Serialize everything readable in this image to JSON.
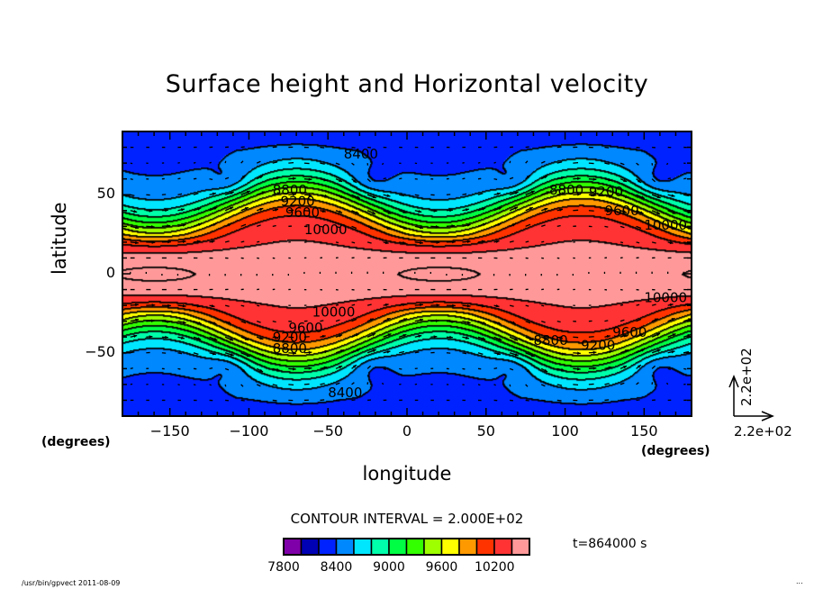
{
  "chart_data": {
    "type": "heatmap",
    "title": "Surface height and Horizontal velocity",
    "xlabel": "longitude",
    "ylabel": "latitude",
    "x_units": "(degrees)",
    "y_units": "(degrees)",
    "xlim": [
      -180,
      180
    ],
    "ylim": [
      -90,
      90
    ],
    "xticks": [
      -150,
      -100,
      -50,
      0,
      50,
      100,
      150
    ],
    "yticks": [
      -50,
      0,
      50
    ],
    "field": "surface height",
    "vector_field": "horizontal velocity",
    "contour_interval_text": "CONTOUR INTERVAL = 2.000E+02",
    "contour_interval": 200,
    "contour_levels": [
      7800,
      8000,
      8200,
      8400,
      8600,
      8800,
      9000,
      9200,
      9400,
      9600,
      9800,
      10000,
      10200,
      10400
    ],
    "contour_labels": [
      {
        "text": "8400",
        "lon": -40,
        "lat": 73
      },
      {
        "text": "8800",
        "lon": -85,
        "lat": 50
      },
      {
        "text": "9200",
        "lon": -80,
        "lat": 43
      },
      {
        "text": "9600",
        "lon": -77,
        "lat": 36
      },
      {
        "text": "10000",
        "lon": -65,
        "lat": 25
      },
      {
        "text": "8800",
        "lon": 90,
        "lat": 50
      },
      {
        "text": "9200",
        "lon": 115,
        "lat": 49
      },
      {
        "text": "9600",
        "lon": 125,
        "lat": 37
      },
      {
        "text": "10000",
        "lon": 150,
        "lat": 28
      },
      {
        "text": "10000",
        "lon": -60,
        "lat": -27
      },
      {
        "text": "9600",
        "lon": -75,
        "lat": -37
      },
      {
        "text": "9200",
        "lon": -85,
        "lat": -43
      },
      {
        "text": "8800",
        "lon": -85,
        "lat": -50
      },
      {
        "text": "8400",
        "lon": -50,
        "lat": -78
      },
      {
        "text": "8800",
        "lon": 80,
        "lat": -45
      },
      {
        "text": "9200",
        "lon": 110,
        "lat": -48
      },
      {
        "text": "9600",
        "lon": 130,
        "lat": -40
      },
      {
        "text": "10000",
        "lon": 150,
        "lat": -18
      }
    ],
    "colorbar": {
      "colors": [
        "#7f00a8",
        "#0000b4",
        "#0022ff",
        "#0088ff",
        "#00e6ff",
        "#00ffaa",
        "#00ff44",
        "#33ff00",
        "#9eff00",
        "#ffff00",
        "#ff9900",
        "#ff3300",
        "#ff3333",
        "#ff9999"
      ],
      "tick_labels": [
        "7800",
        "8400",
        "9000",
        "9600",
        "10200"
      ]
    },
    "reference_vector": {
      "x_label": "2.2e+02",
      "y_label": "2.2e+02"
    },
    "time_label": "t=864000 s"
  },
  "footer": {
    "left": "/usr/bin/gpvect  2011-08-09",
    "right": "..."
  }
}
